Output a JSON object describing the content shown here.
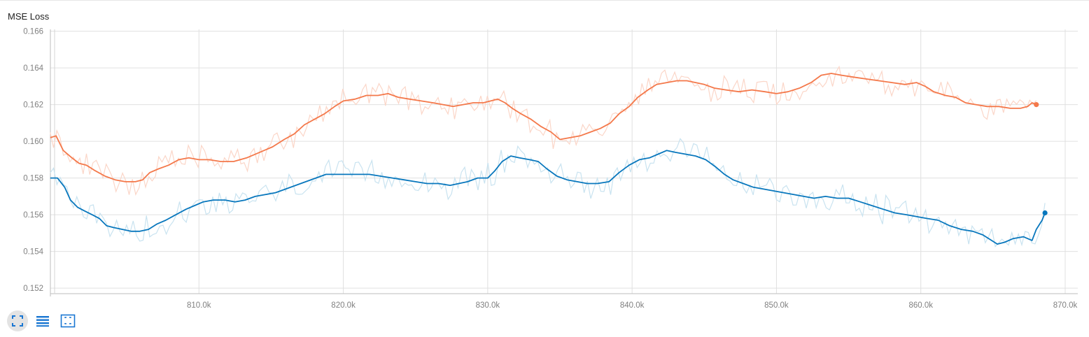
{
  "card": {
    "title": "MSE Loss"
  },
  "toolbar": {
    "buttons": [
      {
        "name": "fit-domain-button",
        "icon": "fullscreen-icon",
        "active": true
      },
      {
        "name": "toggle-log-scale-button",
        "icon": "list-icon",
        "active": false
      },
      {
        "name": "fit-data-button",
        "icon": "fit-to-data-icon",
        "active": false
      }
    ]
  },
  "colors": {
    "orange_smoothed": "#f4784a",
    "orange_raw": "#fbd6c8",
    "blue_smoothed": "#0877bd",
    "blue_raw": "#c9e3f0",
    "grid": "#e0e0e0",
    "tick_text": "#808080"
  },
  "chart_data": {
    "type": "line",
    "title": "MSE Loss",
    "xlabel": "",
    "ylabel": "",
    "xlim": [
      800000,
      870000
    ],
    "ylim": [
      0.1517,
      0.1661
    ],
    "x_ticks": [
      810000,
      820000,
      830000,
      840000,
      850000,
      860000,
      870000
    ],
    "x_tick_labels": [
      "810.0k",
      "820.0k",
      "830.0k",
      "840.0k",
      "850.0k",
      "860.0k",
      "870.0k"
    ],
    "y_ticks": [
      0.152,
      0.154,
      0.156,
      0.158,
      0.16,
      0.162,
      0.164,
      0.166
    ],
    "y_tick_labels": [
      "0.152",
      "0.154",
      "0.156",
      "0.158",
      "0.160",
      "0.162",
      "0.164",
      "0.166"
    ],
    "grid": true,
    "legend": "none",
    "series": [
      {
        "color": "#f4784a",
        "raw_color": "#fbd6c8",
        "end_marker": true,
        "points": [
          [
            799700,
            0.1602
          ],
          [
            800100,
            0.1603
          ],
          [
            800600,
            0.1595
          ],
          [
            801200,
            0.1591
          ],
          [
            801700,
            0.1588
          ],
          [
            802200,
            0.1587
          ],
          [
            802800,
            0.1584
          ],
          [
            803500,
            0.1581
          ],
          [
            804200,
            0.1579
          ],
          [
            804900,
            0.1578
          ],
          [
            805600,
            0.1578
          ],
          [
            806100,
            0.1579
          ],
          [
            806600,
            0.1583
          ],
          [
            807200,
            0.1585
          ],
          [
            807900,
            0.1587
          ],
          [
            808600,
            0.159
          ],
          [
            809300,
            0.1591
          ],
          [
            810000,
            0.159
          ],
          [
            810700,
            0.159
          ],
          [
            811500,
            0.1589
          ],
          [
            812400,
            0.1589
          ],
          [
            813300,
            0.1591
          ],
          [
            814200,
            0.1594
          ],
          [
            815100,
            0.1597
          ],
          [
            815900,
            0.1601
          ],
          [
            816600,
            0.1604
          ],
          [
            817300,
            0.1609
          ],
          [
            818000,
            0.1612
          ],
          [
            818700,
            0.1615
          ],
          [
            819400,
            0.1619
          ],
          [
            820000,
            0.1622
          ],
          [
            820800,
            0.1623
          ],
          [
            821600,
            0.1625
          ],
          [
            822400,
            0.1625
          ],
          [
            823100,
            0.1626
          ],
          [
            823800,
            0.1624
          ],
          [
            824600,
            0.1623
          ],
          [
            825400,
            0.1622
          ],
          [
            826200,
            0.1621
          ],
          [
            826900,
            0.162
          ],
          [
            827600,
            0.1619
          ],
          [
            828300,
            0.162
          ],
          [
            829000,
            0.1621
          ],
          [
            829700,
            0.1621
          ],
          [
            830200,
            0.1622
          ],
          [
            830700,
            0.1623
          ],
          [
            831200,
            0.1621
          ],
          [
            831700,
            0.1618
          ],
          [
            832300,
            0.1615
          ],
          [
            833000,
            0.1612
          ],
          [
            833700,
            0.1608
          ],
          [
            834400,
            0.1605
          ],
          [
            835000,
            0.1601
          ],
          [
            835700,
            0.1602
          ],
          [
            836400,
            0.1603
          ],
          [
            837100,
            0.1605
          ],
          [
            837800,
            0.1607
          ],
          [
            838500,
            0.161
          ],
          [
            839100,
            0.1615
          ],
          [
            839800,
            0.1619
          ],
          [
            840400,
            0.1624
          ],
          [
            841100,
            0.1628
          ],
          [
            841700,
            0.1631
          ],
          [
            842400,
            0.1632
          ],
          [
            843100,
            0.1633
          ],
          [
            843800,
            0.1633
          ],
          [
            844400,
            0.1632
          ],
          [
            845000,
            0.1631
          ],
          [
            845700,
            0.1629
          ],
          [
            846500,
            0.1628
          ],
          [
            847400,
            0.1627
          ],
          [
            848300,
            0.1628
          ],
          [
            849200,
            0.1627
          ],
          [
            850000,
            0.1626
          ],
          [
            850800,
            0.1627
          ],
          [
            851600,
            0.1629
          ],
          [
            852400,
            0.1632
          ],
          [
            853100,
            0.1636
          ],
          [
            853800,
            0.1637
          ],
          [
            854500,
            0.1636
          ],
          [
            855300,
            0.1635
          ],
          [
            856200,
            0.1634
          ],
          [
            857100,
            0.1633
          ],
          [
            858000,
            0.1632
          ],
          [
            858900,
            0.1631
          ],
          [
            859700,
            0.1632
          ],
          [
            860300,
            0.163
          ],
          [
            860900,
            0.1627
          ],
          [
            861700,
            0.1625
          ],
          [
            862400,
            0.1624
          ],
          [
            863100,
            0.1621
          ],
          [
            863800,
            0.162
          ],
          [
            864600,
            0.1619
          ],
          [
            865400,
            0.1619
          ],
          [
            866200,
            0.1618
          ],
          [
            866900,
            0.1618
          ],
          [
            867400,
            0.1619
          ],
          [
            867700,
            0.1621
          ],
          [
            868000,
            0.162
          ]
        ]
      },
      {
        "color": "#0877bd",
        "raw_color": "#c9e3f0",
        "end_marker": true,
        "points": [
          [
            799700,
            0.158
          ],
          [
            800200,
            0.158
          ],
          [
            800700,
            0.1575
          ],
          [
            801100,
            0.1568
          ],
          [
            801600,
            0.1564
          ],
          [
            802100,
            0.1562
          ],
          [
            802600,
            0.156
          ],
          [
            803100,
            0.1558
          ],
          [
            803600,
            0.1554
          ],
          [
            804100,
            0.1553
          ],
          [
            804700,
            0.1552
          ],
          [
            805300,
            0.1551
          ],
          [
            805900,
            0.1551
          ],
          [
            806500,
            0.1552
          ],
          [
            807100,
            0.1555
          ],
          [
            807700,
            0.1557
          ],
          [
            808400,
            0.156
          ],
          [
            809100,
            0.1563
          ],
          [
            809700,
            0.1565
          ],
          [
            810300,
            0.1567
          ],
          [
            811000,
            0.1568
          ],
          [
            811800,
            0.1568
          ],
          [
            812500,
            0.1567
          ],
          [
            813200,
            0.1568
          ],
          [
            813900,
            0.157
          ],
          [
            814600,
            0.1571
          ],
          [
            815300,
            0.1572
          ],
          [
            816000,
            0.1574
          ],
          [
            816700,
            0.1576
          ],
          [
            817400,
            0.1578
          ],
          [
            818100,
            0.158
          ],
          [
            818800,
            0.1582
          ],
          [
            819500,
            0.1582
          ],
          [
            820200,
            0.1582
          ],
          [
            821000,
            0.1582
          ],
          [
            821800,
            0.1582
          ],
          [
            822600,
            0.1581
          ],
          [
            823400,
            0.158
          ],
          [
            824200,
            0.1579
          ],
          [
            825000,
            0.1578
          ],
          [
            825800,
            0.1577
          ],
          [
            826600,
            0.1577
          ],
          [
            827400,
            0.1576
          ],
          [
            828000,
            0.1577
          ],
          [
            828600,
            0.1578
          ],
          [
            829300,
            0.158
          ],
          [
            830000,
            0.158
          ],
          [
            830500,
            0.1584
          ],
          [
            831000,
            0.1589
          ],
          [
            831600,
            0.1592
          ],
          [
            832200,
            0.1591
          ],
          [
            832900,
            0.159
          ],
          [
            833500,
            0.1589
          ],
          [
            834100,
            0.1585
          ],
          [
            834800,
            0.1581
          ],
          [
            835500,
            0.1579
          ],
          [
            836200,
            0.1578
          ],
          [
            836900,
            0.1577
          ],
          [
            837600,
            0.1577
          ],
          [
            838400,
            0.1578
          ],
          [
            839100,
            0.1583
          ],
          [
            839800,
            0.1587
          ],
          [
            840500,
            0.159
          ],
          [
            841200,
            0.1591
          ],
          [
            841800,
            0.1593
          ],
          [
            842400,
            0.1595
          ],
          [
            843000,
            0.1594
          ],
          [
            843700,
            0.1593
          ],
          [
            844400,
            0.1592
          ],
          [
            845100,
            0.159
          ],
          [
            845800,
            0.1586
          ],
          [
            846400,
            0.1582
          ],
          [
            847000,
            0.1579
          ],
          [
            847700,
            0.1577
          ],
          [
            848400,
            0.1575
          ],
          [
            849100,
            0.1574
          ],
          [
            849800,
            0.1573
          ],
          [
            850500,
            0.1572
          ],
          [
            851200,
            0.1571
          ],
          [
            851900,
            0.157
          ],
          [
            852600,
            0.1569
          ],
          [
            853400,
            0.157
          ],
          [
            854200,
            0.1569
          ],
          [
            855000,
            0.1569
          ],
          [
            855800,
            0.1567
          ],
          [
            856600,
            0.1565
          ],
          [
            857400,
            0.1563
          ],
          [
            858200,
            0.1561
          ],
          [
            859000,
            0.156
          ],
          [
            859700,
            0.1559
          ],
          [
            860400,
            0.1558
          ],
          [
            861200,
            0.1557
          ],
          [
            862000,
            0.1554
          ],
          [
            862800,
            0.1552
          ],
          [
            863600,
            0.1551
          ],
          [
            864300,
            0.1549
          ],
          [
            864900,
            0.1546
          ],
          [
            865300,
            0.1544
          ],
          [
            865800,
            0.1545
          ],
          [
            866400,
            0.1547
          ],
          [
            867100,
            0.1548
          ],
          [
            867700,
            0.1546
          ],
          [
            868000,
            0.1552
          ],
          [
            868400,
            0.1557
          ],
          [
            868600,
            0.1561
          ]
        ]
      }
    ]
  }
}
